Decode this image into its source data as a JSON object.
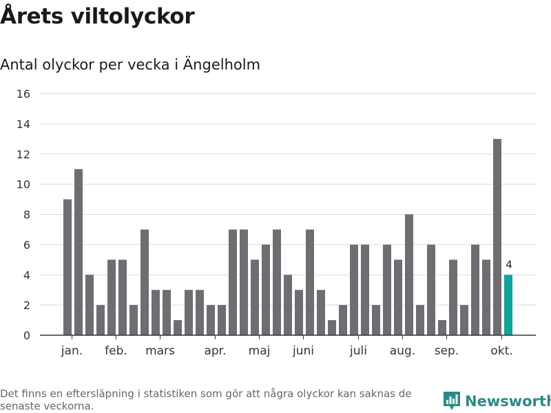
{
  "header": {
    "title": "Årets viltolyckor",
    "subtitle": "Antal olyckor per vecka i Ängelholm"
  },
  "footer": {
    "note": "Det finns en eftersläpning i statistiken som gör att några olyckor kan saknas de senaste veckorna.",
    "brand": "Newsworthy",
    "brand_color": "#2a8b86",
    "brand_icon": "bar-chart-logo-icon"
  },
  "colors": {
    "bar": "#6e6d72",
    "highlight": "#12a39a",
    "grid": "#dcdcdc",
    "axis": "#333333"
  },
  "chart_data": {
    "type": "bar",
    "title": "Antal olyckor per vecka i Ängelholm",
    "xlabel": "",
    "ylabel": "",
    "ylim": [
      0,
      16
    ],
    "yticks": [
      0,
      2,
      4,
      6,
      8,
      10,
      12,
      14,
      16
    ],
    "grid": true,
    "weeks": [
      1,
      2,
      3,
      4,
      5,
      6,
      7,
      8,
      9,
      10,
      11,
      12,
      13,
      14,
      15,
      16,
      17,
      18,
      19,
      20,
      21,
      22,
      23,
      24,
      25,
      26,
      27,
      28,
      29,
      30,
      31,
      32,
      33,
      34,
      35,
      36,
      37,
      38,
      39,
      40,
      41
    ],
    "values": [
      9,
      11,
      4,
      2,
      5,
      5,
      2,
      7,
      3,
      3,
      1,
      3,
      3,
      2,
      2,
      7,
      7,
      5,
      6,
      7,
      4,
      3,
      7,
      3,
      1,
      2,
      6,
      6,
      2,
      6,
      5,
      8,
      2,
      6,
      1,
      5,
      2,
      6,
      5,
      13,
      4
    ],
    "highlight_index": 40,
    "highlight_label": "4",
    "month_labels": [
      {
        "label": "jan.",
        "week": 1.5
      },
      {
        "label": "feb.",
        "week": 5.5
      },
      {
        "label": "mars",
        "week": 9.5
      },
      {
        "label": "apr.",
        "week": 14.5
      },
      {
        "label": "maj",
        "week": 18.5
      },
      {
        "label": "juni",
        "week": 22.5
      },
      {
        "label": "juli",
        "week": 27.5
      },
      {
        "label": "aug.",
        "week": 31.5
      },
      {
        "label": "sep.",
        "week": 35.5
      },
      {
        "label": "okt.",
        "week": 40.5
      }
    ]
  }
}
